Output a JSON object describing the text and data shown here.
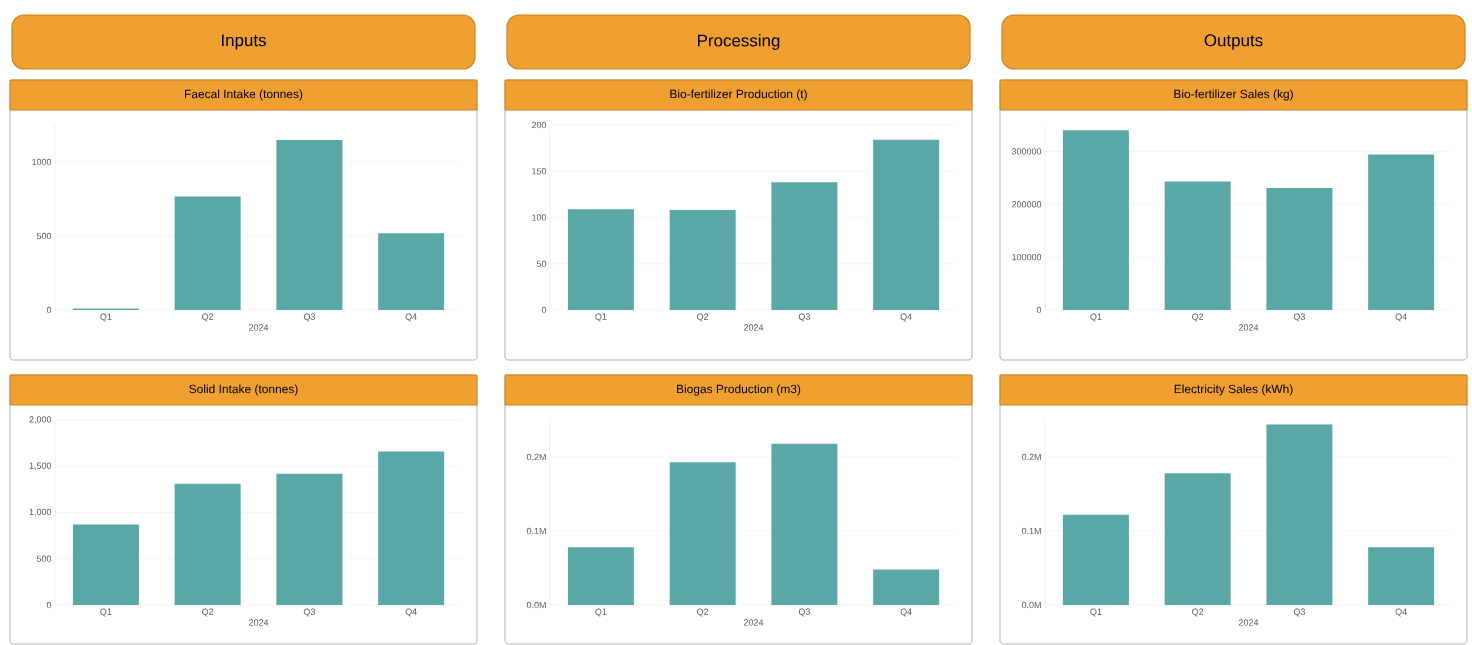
{
  "chart_data": [
    {
      "type": "bar",
      "annotations": [
        "Inputs"
      ],
      "title": "Faecal Intake (tonnes)",
      "xlabel": "2024",
      "categories": [
        "Q1",
        "Q2",
        "Q3",
        "Q4"
      ],
      "values": [
        10,
        766,
        1149,
        519
      ],
      "color": "#5aa8a6",
      "ylim": [
        0,
        1250
      ],
      "yticks": [
        0,
        500,
        1000
      ],
      "grid": "y"
    },
    {
      "type": "bar",
      "annotations": [
        "Processing"
      ],
      "title": "Bio-fertilizer Production (t)",
      "xlabel": "2024",
      "categories": [
        "Q1",
        "Q2",
        "Q3",
        "Q4"
      ],
      "values": [
        109,
        108,
        138,
        184
      ],
      "color": "#5aa8a6",
      "ylim": [
        0,
        200
      ],
      "yticks": [
        0,
        50,
        100,
        150,
        200
      ],
      "grid": "y"
    },
    {
      "type": "bar",
      "annotations": [
        "Outputs"
      ],
      "title": "Bio-fertilizer Sales (kg)",
      "xlabel": "2024",
      "categories": [
        "Q1",
        "Q2",
        "Q3",
        "Q4"
      ],
      "values": [
        340000,
        243000,
        231000,
        294000
      ],
      "color": "#5aa8a6",
      "ylim": [
        0,
        350000
      ],
      "yticks": [
        0,
        100000,
        200000,
        300000
      ],
      "grid": "y"
    },
    {
      "type": "bar",
      "title": "Solid Intake (tonnes)",
      "xlabel": "2024",
      "categories": [
        "Q1",
        "Q2",
        "Q3",
        "Q4"
      ],
      "values": [
        870,
        1310,
        1420,
        1660
      ],
      "color": "#5aa8a6",
      "ylim": [
        0,
        2000
      ],
      "yticks": [
        0,
        500,
        {
          "value": 1000,
          "label": "1,000"
        },
        {
          "value": 1500,
          "label": "1,500"
        },
        {
          "value": 2000,
          "label": "2,000"
        }
      ],
      "grid": "y"
    },
    {
      "type": "bar",
      "title": "Biogas Production (m3)",
      "xlabel": "2024",
      "categories": [
        "Q1",
        "Q2",
        "Q3",
        "Q4"
      ],
      "values": [
        78000,
        193000,
        218000,
        48000
      ],
      "color": "#5aa8a6",
      "ylim": [
        0,
        250000
      ],
      "yticks": [
        {
          "value": 0,
          "label": "0.0M"
        },
        {
          "value": 100000,
          "label": "0.1M"
        },
        {
          "value": 200000,
          "label": "0.2M"
        }
      ],
      "grid": "y"
    },
    {
      "type": "bar",
      "title": "Electricity Sales (kWh)",
      "xlabel": "2024",
      "categories": [
        "Q1",
        "Q2",
        "Q3",
        "Q4"
      ],
      "values": [
        122000,
        178000,
        244000,
        78000
      ],
      "color": "#5aa8a6",
      "ylim": [
        0,
        250000
      ],
      "yticks": [
        {
          "value": 0,
          "label": "0.0M"
        },
        {
          "value": 100000,
          "label": "0.1M"
        },
        {
          "value": 200000,
          "label": "0.2M"
        }
      ],
      "grid": "y"
    }
  ]
}
